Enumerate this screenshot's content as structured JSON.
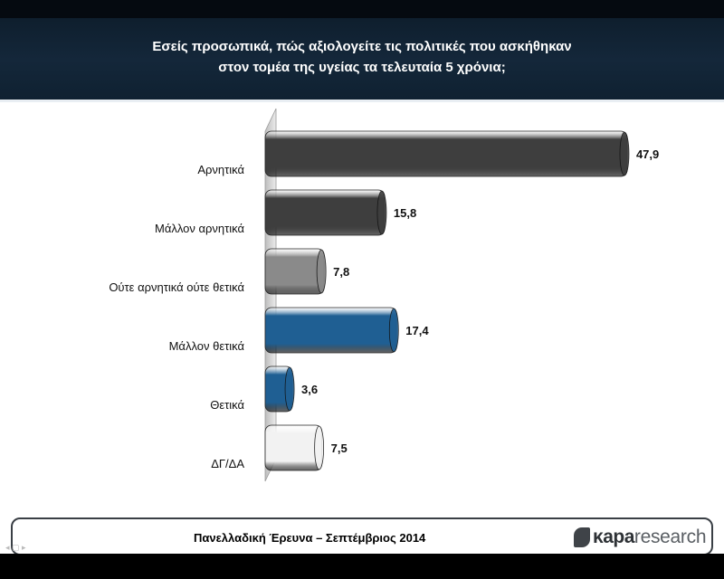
{
  "header": {
    "title_line1": "Εσείς προσωπικά, πώς αξιολογείτε τις πολιτικές που ασκήθηκαν",
    "title_line2": "στον τομέα της υγείας τα τελευταία 5 χρόνια;"
  },
  "footer": {
    "caption": "Πανελλαδική Έρευνα – Σεπτέμβριος 2014",
    "logo_part1": "κapa",
    "logo_part2": "research"
  },
  "chart_data": {
    "type": "bar",
    "orientation": "horizontal",
    "title": "Εσείς προσωπικά, πώς αξιολογείτε τις πολιτικές που ασκήθηκαν στον τομέα της υγείας τα τελευταία 5 χρόνια;",
    "categories": [
      "Αρνητικά",
      "Μάλλον αρνητικά",
      "Ούτε αρνητικά ούτε θετικά",
      "Μάλλον θετικά",
      "Θετικά",
      "ΔΓ/ΔΑ"
    ],
    "values": [
      47.9,
      15.8,
      7.8,
      17.4,
      3.6,
      7.5
    ],
    "value_labels": [
      "47,9",
      "15,8",
      "7,8",
      "17,4",
      "3,6",
      "7,5"
    ],
    "bar_colors": [
      "#3e3e3e",
      "#3e3e3e",
      "#8a8a8a",
      "#1f5f93",
      "#1f5f93",
      "#f2f2f2"
    ],
    "xlim": [
      0,
      50
    ],
    "grid": false,
    "legend": "none"
  }
}
